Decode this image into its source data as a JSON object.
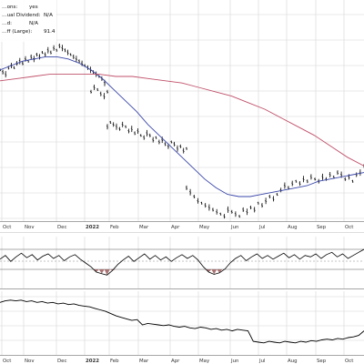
{
  "info_box": {
    "lines": [
      {
        "label": "…ons:",
        "value": "yes"
      },
      {
        "label": "…ual Dividend:",
        "value": "N/A"
      },
      {
        "label": "…d:",
        "value": "N/A"
      },
      {
        "label": "…ff (Large):",
        "value": "91.4"
      }
    ]
  },
  "chart_data": [
    {
      "type": "line",
      "panel": "price",
      "x_ticks": [
        "Oct",
        "Nov",
        "Dec",
        "2022",
        "Feb",
        "Mar",
        "Apr",
        "May",
        "Jun",
        "Jul",
        "Aug",
        "Sep",
        "Oct"
      ],
      "x_ticks_bold": [
        "2022"
      ],
      "grid": true,
      "series": [
        {
          "kind": "ohlc-bars",
          "color": "#000000",
          "values": [
            88,
            87,
            86,
            89,
            90,
            89,
            91,
            92,
            91,
            93,
            92,
            94,
            93,
            95,
            94,
            96,
            95,
            97,
            96,
            98,
            97,
            99,
            98,
            97,
            96,
            95,
            94,
            93,
            92,
            91,
            90,
            89,
            88,
            87,
            86,
            85,
            84,
            82,
            78,
            80,
            79,
            77,
            76,
            78,
            62,
            64,
            63,
            62,
            61,
            63,
            62,
            60,
            61,
            59,
            60,
            58,
            57,
            59,
            58,
            56,
            57,
            55,
            56,
            54,
            53,
            55,
            54,
            52,
            53,
            51,
            52,
            34,
            32,
            30,
            28,
            27,
            26,
            25,
            24,
            23,
            22,
            21,
            24,
            23,
            22,
            21,
            24,
            23,
            25,
            24,
            27,
            26,
            28,
            30,
            29,
            31,
            33,
            35,
            34,
            36,
            37,
            36,
            38,
            37,
            39,
            38,
            37,
            39,
            38,
            40,
            39,
            41,
            40,
            38,
            39,
            37,
            40,
            41,
            44
          ]
        },
        {
          "kind": "moving-average",
          "color": "#3a47a8",
          "values": [
            88,
            90,
            92,
            93,
            94,
            94,
            93,
            91,
            88,
            84,
            79,
            74,
            69,
            63,
            58,
            53,
            48,
            43,
            38,
            34,
            31,
            30,
            30,
            31,
            32,
            33,
            34,
            35,
            37,
            38,
            39,
            40,
            41
          ]
        },
        {
          "kind": "moving-average",
          "color": "#c0506a",
          "values": [
            83,
            84,
            85,
            86,
            86,
            86,
            86,
            85,
            85,
            84,
            83,
            82,
            80,
            78,
            76,
            73,
            70,
            66,
            62,
            58,
            53,
            48,
            44
          ]
        }
      ]
    },
    {
      "type": "line",
      "panel": "oscillator",
      "grid": true,
      "reference_levels": [
        "upper",
        "middle",
        "lower"
      ],
      "series": [
        {
          "kind": "oscillator",
          "color": "#000000",
          "fill_below_lower": "#9c5c5c",
          "values": [
            55,
            60,
            52,
            58,
            63,
            57,
            61,
            54,
            59,
            62,
            56,
            60,
            53,
            58,
            61,
            55,
            50,
            45,
            38,
            36,
            34,
            40,
            48,
            54,
            59,
            52,
            57,
            62,
            55,
            60,
            54,
            58,
            52,
            57,
            61,
            56,
            60,
            54,
            45,
            38,
            35,
            37,
            42,
            50,
            56,
            60,
            53,
            58,
            62,
            56,
            60,
            55,
            59,
            63,
            57,
            61,
            55,
            60,
            58,
            62,
            56,
            61,
            64,
            58,
            62,
            56,
            60,
            64,
            68
          ]
        }
      ]
    },
    {
      "type": "line",
      "panel": "relative-strength",
      "grid": true,
      "x_ticks": [
        "Oct",
        "Nov",
        "Dec",
        "2022",
        "Feb",
        "Mar",
        "Apr",
        "May",
        "Jun",
        "Jul",
        "Aug",
        "Sep",
        "Oct"
      ],
      "x_ticks_bold": [
        "2022"
      ],
      "series": [
        {
          "kind": "line",
          "color": "#000000",
          "values": [
            90,
            92,
            93,
            92,
            93,
            91,
            92,
            90,
            91,
            89,
            90,
            88,
            89,
            87,
            88,
            86,
            85,
            84,
            82,
            80,
            78,
            75,
            72,
            70,
            68,
            66,
            67,
            60,
            62,
            61,
            60,
            59,
            60,
            58,
            57,
            58,
            56,
            55,
            57,
            56,
            54,
            55,
            53,
            54,
            52,
            54,
            53,
            52,
            38,
            37,
            36,
            38,
            37,
            36,
            38,
            37,
            36,
            38,
            37,
            39,
            38,
            40,
            41,
            40,
            42,
            41,
            43,
            44,
            46,
            52
          ]
        }
      ]
    }
  ]
}
